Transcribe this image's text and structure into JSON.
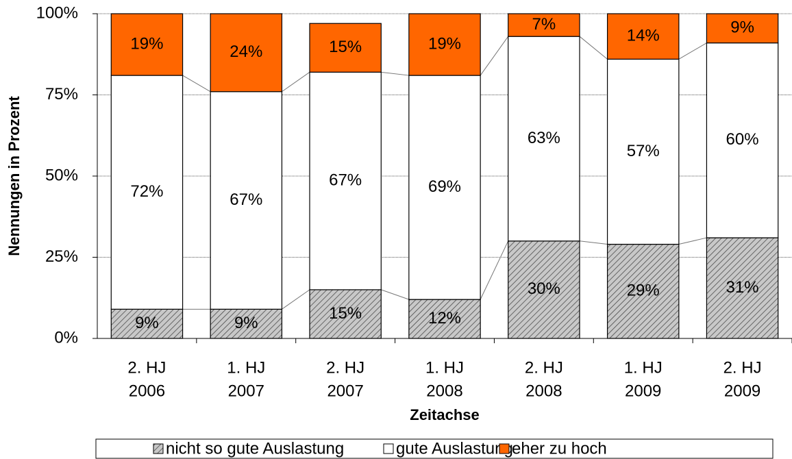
{
  "chart_data": {
    "type": "stacked_bar",
    "y_label": "Nennungen in Prozent",
    "x_label": "Zeitachse",
    "categories": [
      [
        "2. HJ",
        "2006"
      ],
      [
        "1. HJ",
        "2007"
      ],
      [
        "2. HJ",
        "2007"
      ],
      [
        "1. HJ",
        "2008"
      ],
      [
        "2. HJ",
        "2008"
      ],
      [
        "1. HJ",
        "2009"
      ],
      [
        "2. HJ",
        "2009"
      ]
    ],
    "series": [
      {
        "name": "nicht so gute Auslastung",
        "color": "#c8c8c8",
        "pattern": "hatch",
        "values": [
          9,
          9,
          15,
          12,
          30,
          29,
          31
        ],
        "value_labels": [
          "9%",
          "9%",
          "15%",
          "12%",
          "30%",
          "29%",
          "31%"
        ]
      },
      {
        "name": "gute Auslastung",
        "color": "#ffffff",
        "values": [
          72,
          67,
          67,
          69,
          63,
          57,
          60
        ],
        "value_labels": [
          "72%",
          "67%",
          "67%",
          "69%",
          "63%",
          "57%",
          "60%"
        ]
      },
      {
        "name": "eher zu hoch",
        "color": "#ff6600",
        "values": [
          19,
          24,
          15,
          19,
          7,
          14,
          9
        ],
        "value_labels": [
          "19%",
          "24%",
          "15%",
          "19%",
          "7%",
          "14%",
          "9%"
        ]
      }
    ],
    "ylim": [
      0,
      100
    ],
    "yticks": [
      {
        "value": 0,
        "label": "0%"
      },
      {
        "value": 25,
        "label": "25%"
      },
      {
        "value": 50,
        "label": "50%"
      },
      {
        "value": 75,
        "label": "75%"
      },
      {
        "value": 100,
        "label": "100%"
      }
    ],
    "grid": true,
    "legend": "bottom"
  }
}
